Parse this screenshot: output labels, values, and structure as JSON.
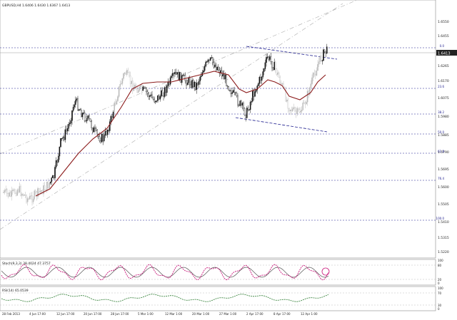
{
  "header": {
    "symbol_info": "GBPUSD,H4 1.6406 1.6430 1.6367 1.6413"
  },
  "main_panel": {
    "price_labels": [
      "1.6550",
      "1.6455",
      "1.6360",
      "1.6265",
      "1.6170",
      "1.6075",
      "1.5980",
      "1.5885",
      "1.5790",
      "1.5695",
      "1.5600",
      "1.5505",
      "1.5410",
      "1.5315",
      "1.5220"
    ],
    "current_price": "1.6413",
    "fib_labels": [
      "0.0",
      "23.6",
      "38.2",
      "50.0",
      "61.8",
      "76.4",
      "100.0"
    ]
  },
  "stoch_panel": {
    "title": "Stoch(9,3,3) 38.4024 47.3757",
    "levels": [
      "100",
      "80",
      "20",
      "0"
    ]
  },
  "rsi_panel": {
    "title": "RSI(14) 65.0539",
    "levels": [
      "100",
      "70",
      "30",
      "0"
    ]
  },
  "time_axis": {
    "labels": [
      "28 Feb 2013",
      "4 Jun 17:00",
      "12 Jun 17:00",
      "20 Jun 17:00",
      "28 Jun 17:00",
      "5 Mar 1:00",
      "12 Mar 1:00",
      "20 Mar 1:00",
      "27 Mar 1:00",
      "2 Apr 17:00",
      "8 Apr 17:00",
      "12 Apr 1:00"
    ]
  },
  "colors": {
    "candles": "#111111",
    "ma_line": "#8b1a1a",
    "grid_line": "#1f1f8f",
    "stoch_main": "#c8187a",
    "stoch_signal": "#555555",
    "rsi": "#2e7d32"
  }
}
